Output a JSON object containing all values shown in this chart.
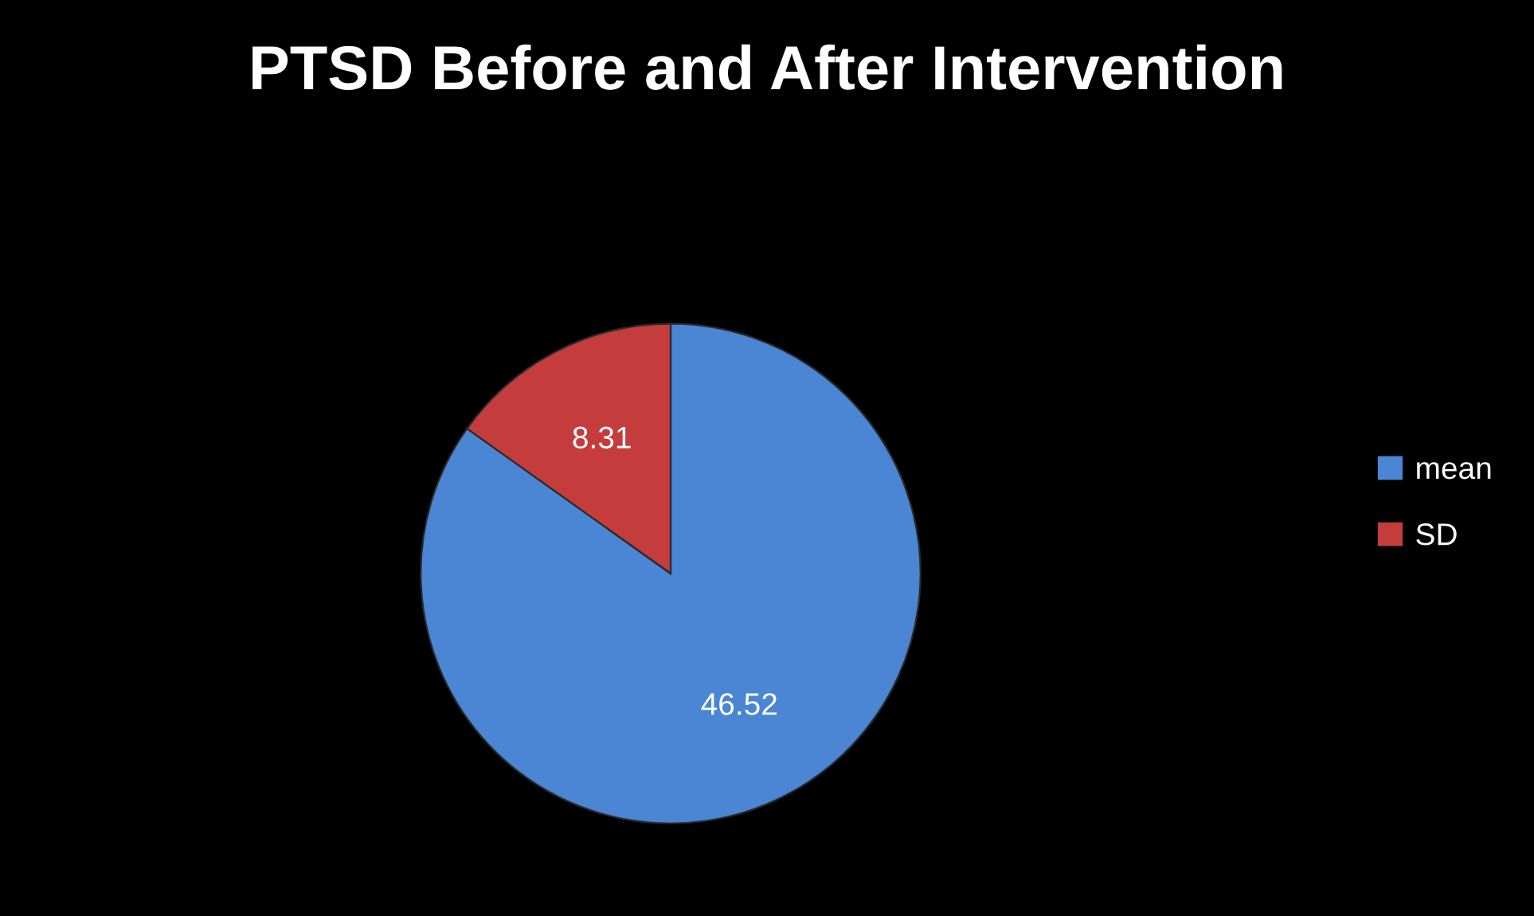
{
  "chart_data": {
    "type": "pie",
    "title": "PTSD Before and After Intervention",
    "categories": [
      "mean",
      "SD"
    ],
    "values": [
      46.52,
      8.31
    ],
    "colors": [
      "#4a86d4",
      "#c43c3c"
    ],
    "data_labels": true,
    "legend": "right"
  }
}
